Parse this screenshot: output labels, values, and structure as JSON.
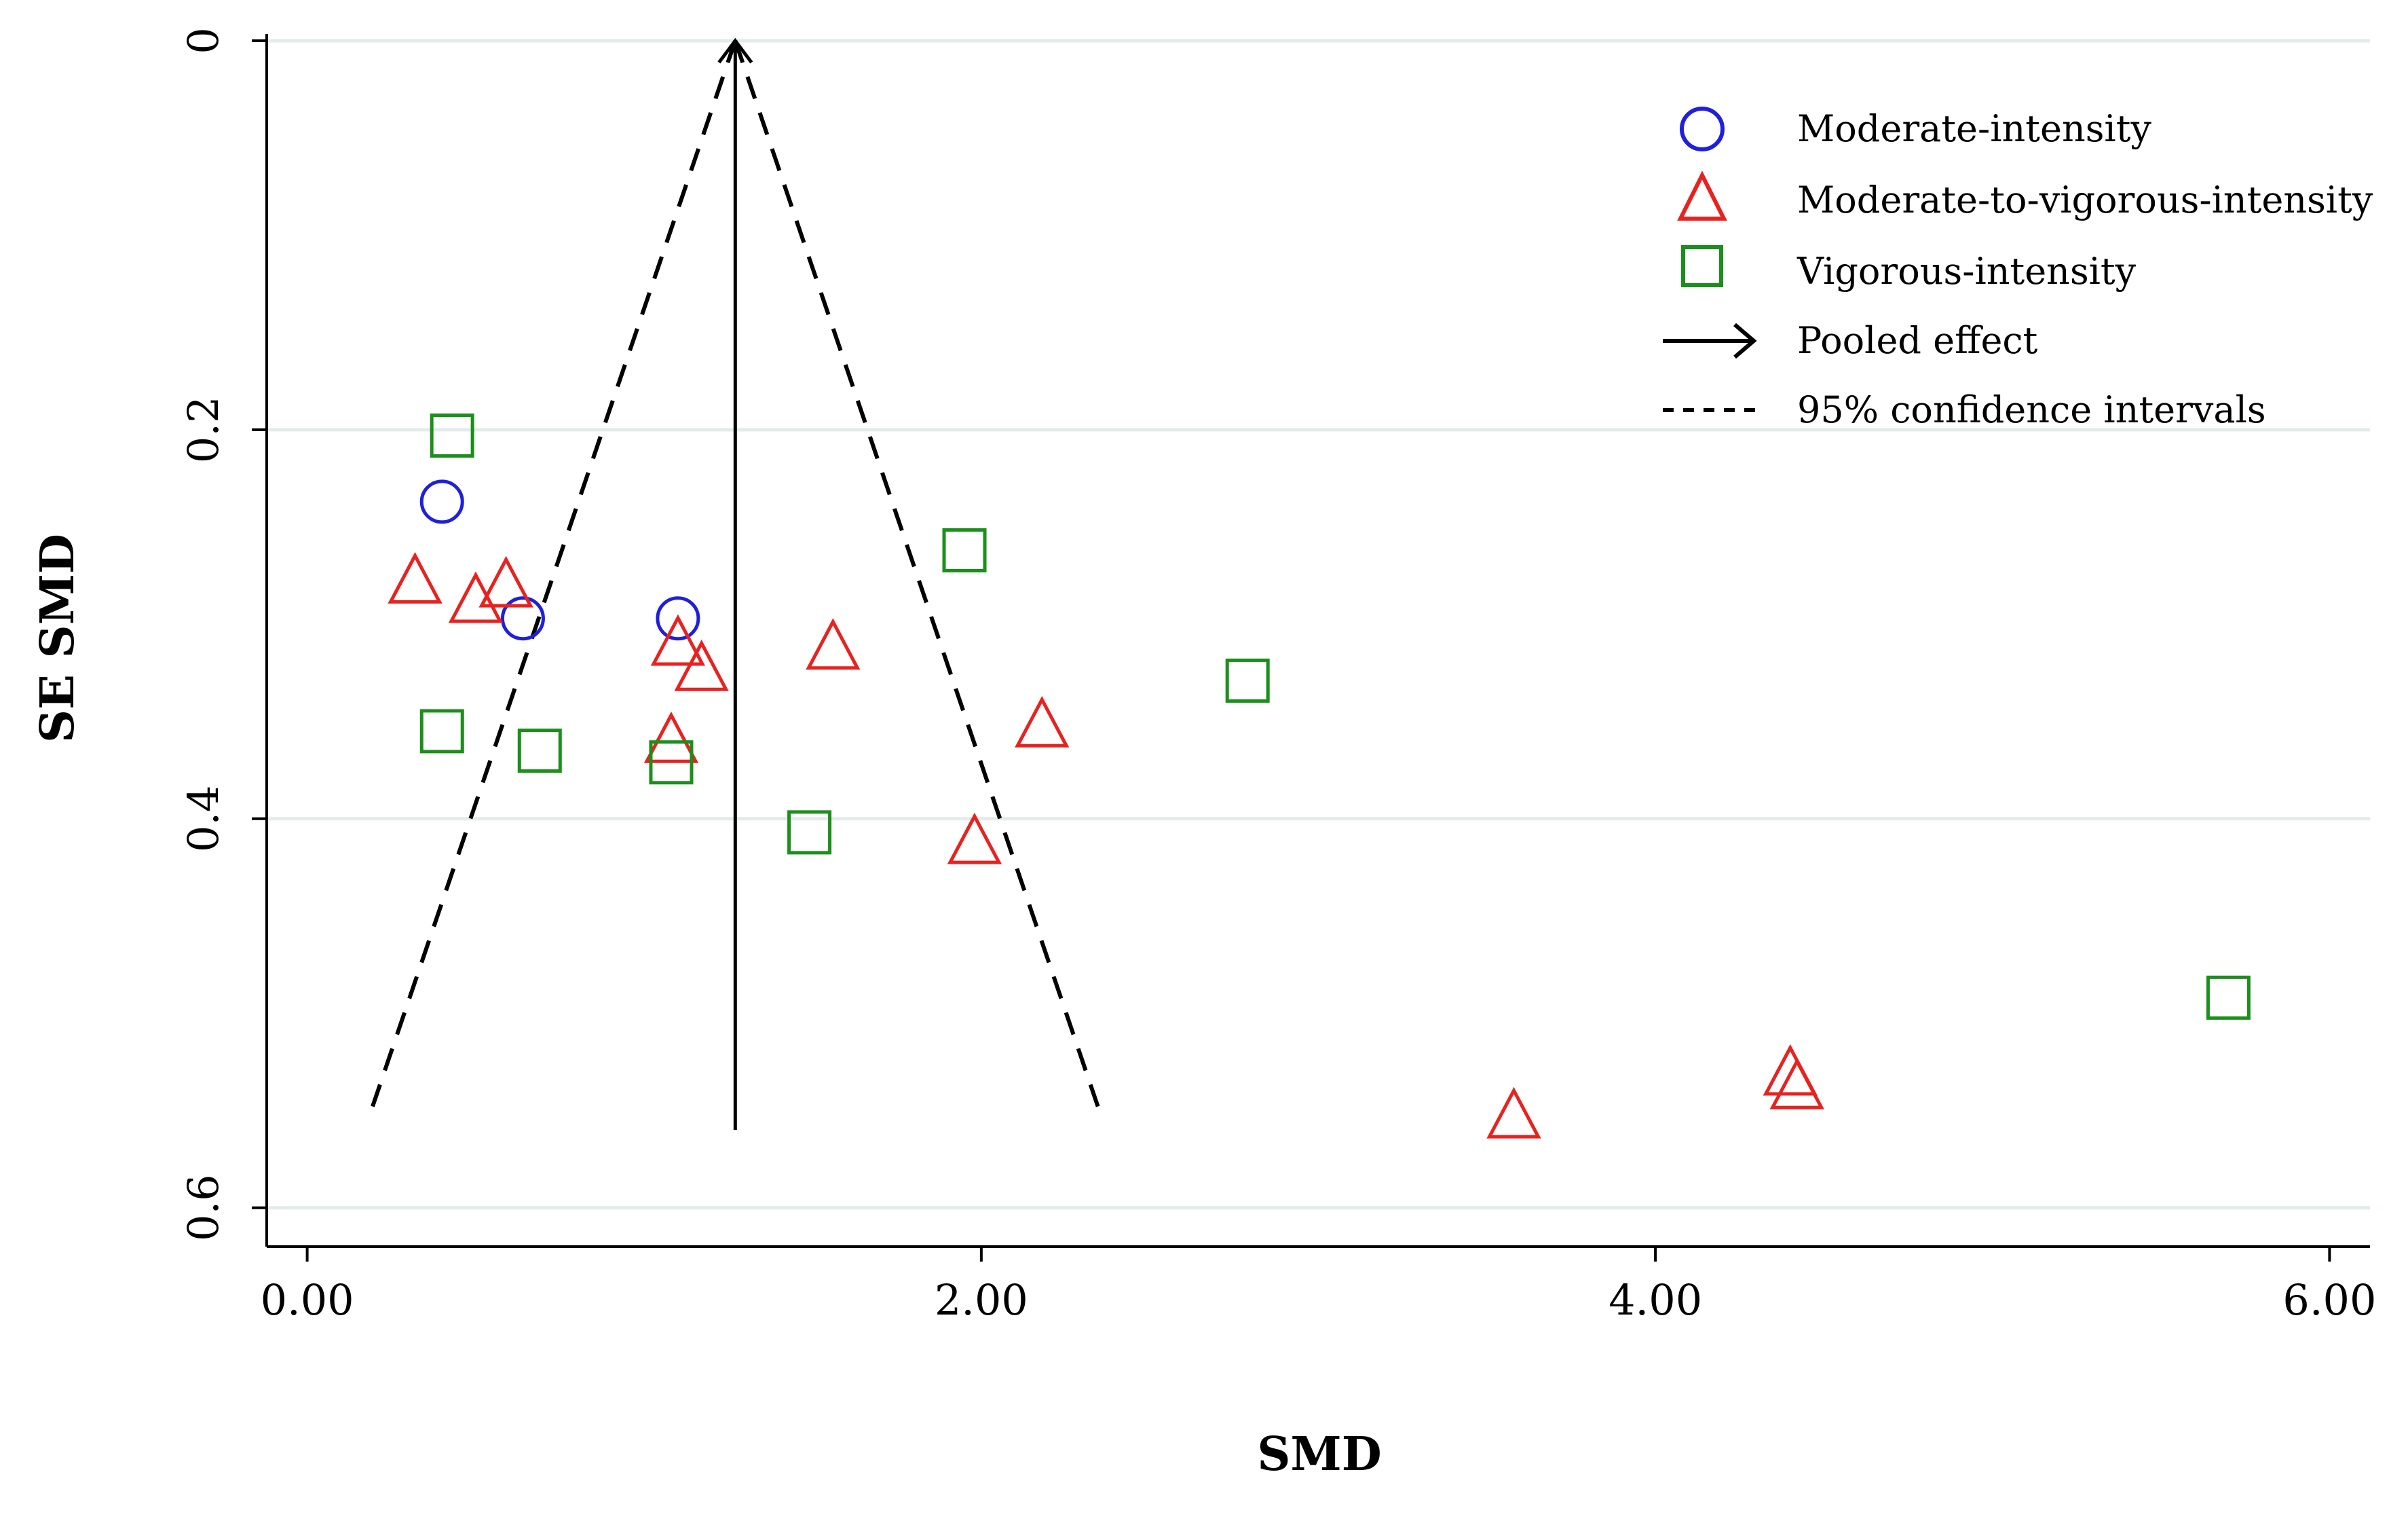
{
  "chart_data": {
    "type": "scatter",
    "subtype": "funnel-plot",
    "xlabel": "SMD",
    "ylabel": "SE SMD",
    "xlim": [
      -0.12,
      6.12
    ],
    "ylim": [
      0,
      0.62
    ],
    "y_inverted": true,
    "xticks": [
      0,
      2,
      4,
      6
    ],
    "xtick_labels": [
      "0.00",
      "2.00",
      "4.00",
      "6.00"
    ],
    "yticks": [
      0,
      0.2,
      0.4,
      0.6
    ],
    "ytick_labels": [
      "0",
      "0.2",
      "0.4",
      "0.6"
    ],
    "grid": "horizontal",
    "legend_position": "top-right",
    "colors": {
      "moderate": "#1f1fdd",
      "moderate_vigorous": "#e8221f",
      "vigorous": "#1b8f1b",
      "grid": "#e3ecea",
      "axis": "#000000"
    },
    "series": [
      {
        "name": "Moderate-intensity",
        "marker": "circle",
        "points": [
          {
            "x": 0.4,
            "y": 0.237
          },
          {
            "x": 0.64,
            "y": 0.297
          },
          {
            "x": 1.1,
            "y": 0.297
          }
        ]
      },
      {
        "name": "Moderate-to-vigorous-intensity",
        "marker": "triangle",
        "points": [
          {
            "x": 0.32,
            "y": 0.278
          },
          {
            "x": 0.5,
            "y": 0.288
          },
          {
            "x": 0.59,
            "y": 0.28
          },
          {
            "x": 1.1,
            "y": 0.31
          },
          {
            "x": 1.17,
            "y": 0.323
          },
          {
            "x": 1.08,
            "y": 0.36
          },
          {
            "x": 1.56,
            "y": 0.312
          },
          {
            "x": 2.18,
            "y": 0.352
          },
          {
            "x": 1.98,
            "y": 0.412
          },
          {
            "x": 3.58,
            "y": 0.553
          },
          {
            "x": 4.4,
            "y": 0.531
          },
          {
            "x": 4.42,
            "y": 0.538
          }
        ]
      },
      {
        "name": "Vigorous-intensity",
        "marker": "square",
        "points": [
          {
            "x": 0.43,
            "y": 0.203
          },
          {
            "x": 0.4,
            "y": 0.355
          },
          {
            "x": 0.69,
            "y": 0.365
          },
          {
            "x": 1.08,
            "y": 0.371
          },
          {
            "x": 1.49,
            "y": 0.407
          },
          {
            "x": 1.95,
            "y": 0.262
          },
          {
            "x": 2.79,
            "y": 0.329
          },
          {
            "x": 5.7,
            "y": 0.492
          }
        ]
      }
    ],
    "pooled_effect": {
      "name": "Pooled effect",
      "x": 1.27,
      "y_from": 0.56,
      "y_to": 0
    },
    "confidence_interval": {
      "name": "95% confidence intervals",
      "apex": {
        "x": 1.27,
        "y": 0
      },
      "left_end": {
        "x": 0.19,
        "y": 0.55
      },
      "right_end": {
        "x": 2.35,
        "y": 0.55
      }
    }
  }
}
